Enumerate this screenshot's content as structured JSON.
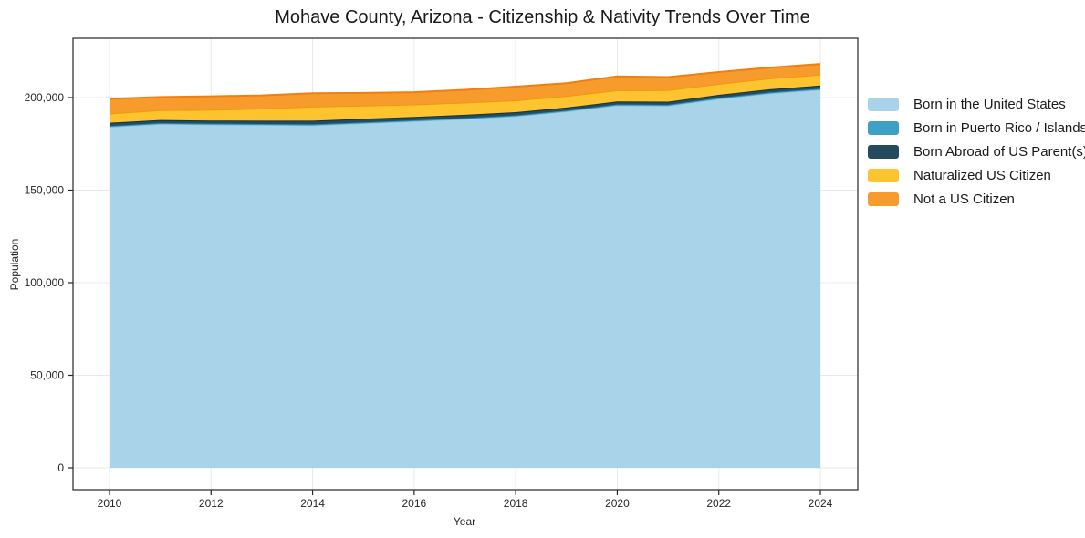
{
  "chart_data": {
    "type": "area",
    "stacked": true,
    "title": "Mohave County, Arizona - Citizenship & Nativity Trends Over Time",
    "xlabel": "Year",
    "ylabel": "Population",
    "x": [
      2010,
      2011,
      2012,
      2013,
      2014,
      2015,
      2016,
      2017,
      2018,
      2019,
      2020,
      2021,
      2022,
      2023,
      2024
    ],
    "x_ticks": [
      2010,
      2012,
      2014,
      2016,
      2018,
      2020,
      2022,
      2024
    ],
    "y_ticks": [
      0,
      50000,
      100000,
      150000,
      200000
    ],
    "ylim": [
      0,
      230000
    ],
    "grid": true,
    "legend_position": "right",
    "series": [
      {
        "name": "Born in the United States",
        "color": "#a9d3e8",
        "edge_color": "#84bedd",
        "values": [
          184300,
          185800,
          185500,
          185300,
          185100,
          186200,
          187300,
          188500,
          190000,
          192600,
          195900,
          195700,
          199400,
          202300,
          204400
        ]
      },
      {
        "name": "Born in Puerto Rico / Islands",
        "color": "#3fa0c6",
        "edge_color": "#2d8db2",
        "values": [
          400,
          400,
          400,
          400,
          400,
          400,
          400,
          400,
          400,
          400,
          400,
          400,
          400,
          450,
          450
        ]
      },
      {
        "name": "Born Abroad of US Parent(s)",
        "color": "#254c5e",
        "edge_color": "#17323f",
        "values": [
          1700,
          1700,
          1700,
          1800,
          2000,
          1900,
          1800,
          1800,
          1700,
          1650,
          1600,
          1700,
          1700,
          1750,
          1650
        ]
      },
      {
        "name": "Naturalized US Citizen",
        "color": "#fdc42f",
        "edge_color": "#f0970f",
        "values": [
          5000,
          5300,
          5800,
          6600,
          7600,
          7200,
          6800,
          6600,
          6400,
          6200,
          6100,
          6300,
          5900,
          5900,
          5900
        ]
      },
      {
        "name": "Not a US Citizen",
        "color": "#f89b2d",
        "edge_color": "#ee7f10",
        "values": [
          7900,
          7100,
          7300,
          7100,
          7200,
          6800,
          6600,
          6900,
          7400,
          6950,
          7500,
          7000,
          6400,
          5800,
          5800
        ]
      }
    ]
  },
  "style": {
    "grid_color": "#e9e9e9",
    "frame_color": "#262626",
    "tick_color": "#262626",
    "tick_label_color": "#262626",
    "background": "#ffffff"
  }
}
